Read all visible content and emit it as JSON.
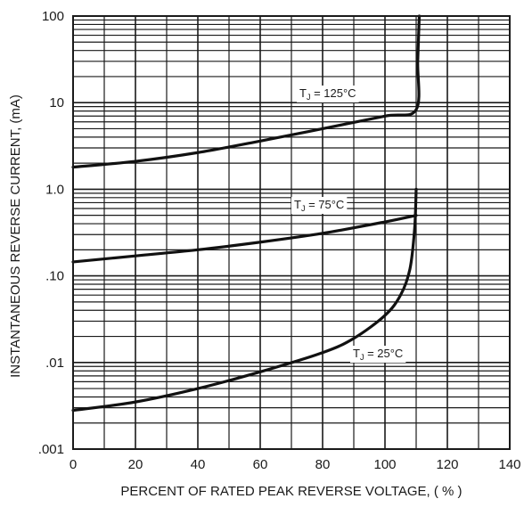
{
  "chart_data": {
    "type": "line",
    "title": "",
    "xlabel": "PERCENT OF RATED PEAK REVERSE VOLTAGE, ( % )",
    "ylabel": "INSTANTANEOUS REVERSE CURRENT, (mA)",
    "xlim": [
      0,
      140
    ],
    "ylim": [
      0.001,
      100
    ],
    "yscale": "log",
    "grid": true,
    "x_ticks": [
      0,
      20,
      40,
      60,
      80,
      100,
      120,
      140
    ],
    "x_tick_labels": [
      "0",
      "20",
      "40",
      "60",
      "80",
      "100",
      "120",
      "140"
    ],
    "y_ticks": [
      0.001,
      0.01,
      0.1,
      1,
      10,
      100
    ],
    "y_tick_labels": [
      ".001",
      ".01",
      ".10",
      "1.0",
      "10",
      "100"
    ],
    "series": [
      {
        "name": "TJ = 125°C",
        "label_main": "T",
        "label_sub": "J",
        "label_rest": " = 125°C",
        "x": [
          0,
          20,
          40,
          60,
          80,
          100,
          110,
          110.5,
          111
        ],
        "y": [
          1.8,
          2.1,
          2.65,
          3.6,
          5.0,
          7.0,
          8.3,
          30,
          100
        ]
      },
      {
        "name": "TJ = 75°C",
        "label_main": "T",
        "label_sub": "J",
        "label_rest": " = 75°C",
        "x": [
          0,
          20,
          40,
          60,
          80,
          100,
          110
        ],
        "y": [
          0.145,
          0.17,
          0.2,
          0.245,
          0.31,
          0.42,
          0.5
        ]
      },
      {
        "name": "TJ = 25°C",
        "label_main": "T",
        "label_sub": "J",
        "label_rest": " = 25°C",
        "x": [
          0,
          20,
          40,
          60,
          80,
          90,
          100,
          105,
          108,
          109.5,
          110
        ],
        "y": [
          0.0028,
          0.0035,
          0.005,
          0.0078,
          0.013,
          0.019,
          0.035,
          0.06,
          0.12,
          0.35,
          1.0
        ]
      }
    ]
  }
}
